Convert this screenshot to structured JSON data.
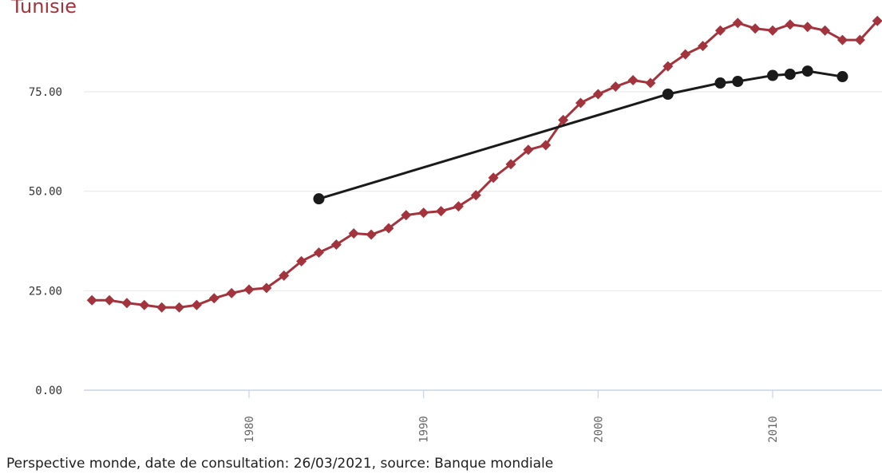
{
  "chart_data": {
    "type": "line",
    "ylim": [
      0,
      95
    ],
    "xlim": [
      1971,
      2016
    ],
    "y_ticks": [
      0,
      25,
      50,
      75
    ],
    "y_tick_labels": [
      "0.00",
      "25.00",
      "50.00",
      "75.00"
    ],
    "x_ticks": [
      1980,
      1990,
      2000,
      2010
    ],
    "x_tick_labels": [
      "1980",
      "1990",
      "2000",
      "2010"
    ],
    "grid": true,
    "series": [
      {
        "name": "Tunisie",
        "color": "#a3343d",
        "marker": "diamond",
        "x": [
          1971,
          1972,
          1973,
          1974,
          1975,
          1976,
          1977,
          1978,
          1979,
          1980,
          1981,
          1982,
          1983,
          1984,
          1985,
          1986,
          1987,
          1988,
          1989,
          1990,
          1991,
          1992,
          1993,
          1994,
          1995,
          1996,
          1997,
          1998,
          1999,
          2000,
          2001,
          2002,
          2003,
          2004,
          2005,
          2006,
          2007,
          2008,
          2009,
          2010,
          2011,
          2012,
          2013,
          2014,
          2015,
          2016
        ],
        "y": [
          22.6,
          22.6,
          21.9,
          21.4,
          20.8,
          20.8,
          21.4,
          23.1,
          24.4,
          25.3,
          25.7,
          28.8,
          32.4,
          34.6,
          36.6,
          39.4,
          39.1,
          40.7,
          44.0,
          44.6,
          45.0,
          46.2,
          49.0,
          53.4,
          56.8,
          60.4,
          61.6,
          67.9,
          72.2,
          74.4,
          76.3,
          77.9,
          77.2,
          81.4,
          84.4,
          86.5,
          90.4,
          92.3,
          90.9,
          90.4,
          91.9,
          91.3,
          90.4,
          88.0,
          88.0,
          92.8
        ]
      },
      {
        "name": "",
        "color": "#1a1a1a",
        "marker": "circle",
        "x": [
          1984,
          2004,
          2007,
          2008,
          2010,
          2011,
          2012,
          2014
        ],
        "y": [
          48.1,
          74.4,
          77.2,
          77.6,
          79.1,
          79.4,
          80.2,
          78.8
        ]
      }
    ]
  },
  "source_text": "Perspective monde, date de consultation: 26/03/2021, source: Banque mondiale"
}
